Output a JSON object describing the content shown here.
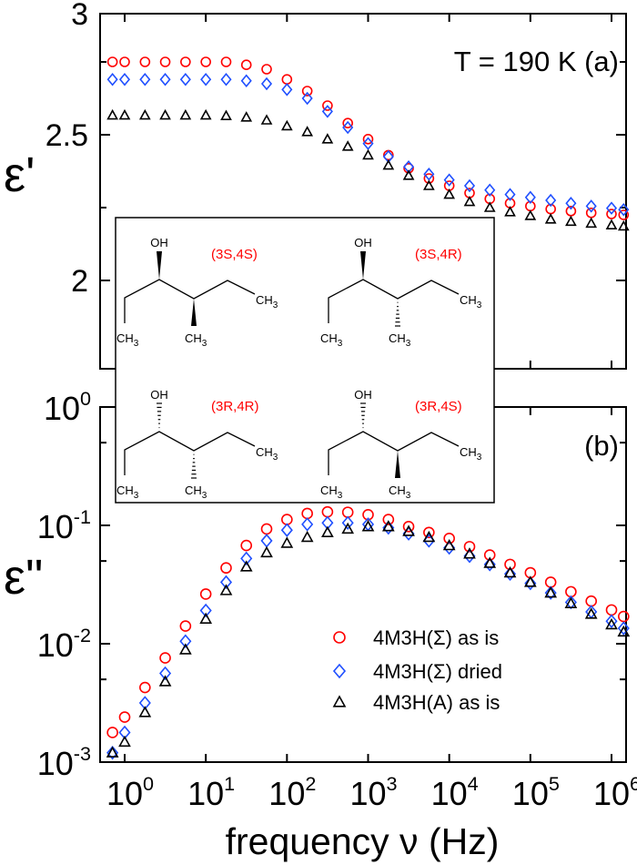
{
  "chart_data": [
    {
      "panel": "(a)",
      "type": "scatter",
      "annotation": "T = 190 K",
      "panel_label": "(a)",
      "ylabel": "ε'",
      "xscale": "log",
      "yscale": "linear",
      "ylim": [
        1.7,
        2.916
      ],
      "xlim": [
        0.5,
        1500000
      ],
      "yticks": [
        {
          "value": 2,
          "label": "2"
        },
        {
          "value": 2.5,
          "label": "2.5"
        },
        {
          "value": 3,
          "label": "3"
        }
      ],
      "x": [
        0.708,
        1,
        1.78,
        3.16,
        5.62,
        10,
        17.8,
        31.6,
        56.2,
        100,
        178,
        316,
        562,
        1000,
        1780,
        3160,
        5620,
        10000,
        17800,
        31600,
        56200,
        100000,
        178000,
        316000,
        562000,
        1000000,
        1410000
      ],
      "series": [
        {
          "name": "4M3H(Σ) as is",
          "marker": "circle",
          "color": "#ff0000",
          "values": [
            2.75,
            2.75,
            2.75,
            2.75,
            2.75,
            2.75,
            2.75,
            2.74,
            2.725,
            2.69,
            2.65,
            2.6,
            2.54,
            2.485,
            2.43,
            2.385,
            2.35,
            2.325,
            2.3,
            2.28,
            2.265,
            2.255,
            2.245,
            2.238,
            2.232,
            2.228,
            2.225
          ]
        },
        {
          "name": "4M3H(Σ) dried",
          "marker": "diamond",
          "color": "#1f4fff",
          "values": [
            2.69,
            2.69,
            2.69,
            2.69,
            2.69,
            2.69,
            2.69,
            2.685,
            2.675,
            2.655,
            2.625,
            2.58,
            2.525,
            2.47,
            2.425,
            2.39,
            2.365,
            2.345,
            2.325,
            2.31,
            2.295,
            2.285,
            2.275,
            2.265,
            2.255,
            2.248,
            2.243
          ]
        },
        {
          "name": "4M3H(A) as is",
          "marker": "triangle",
          "color": "#000000",
          "values": [
            2.567,
            2.567,
            2.567,
            2.567,
            2.567,
            2.567,
            2.565,
            2.56,
            2.55,
            2.53,
            2.51,
            2.485,
            2.46,
            2.43,
            2.395,
            2.36,
            2.325,
            2.295,
            2.27,
            2.25,
            2.235,
            2.222,
            2.21,
            2.202,
            2.196,
            2.19,
            2.186
          ]
        }
      ]
    },
    {
      "panel": "(b)",
      "type": "scatter",
      "panel_label": "(b)",
      "ylabel": "ε\"",
      "xlabel": "frequency ν (Hz)",
      "xscale": "log",
      "yscale": "log",
      "ylim": [
        0.001,
        1
      ],
      "xlim": [
        0.5,
        1500000
      ],
      "yticks": [
        {
          "value": 1,
          "base": "10",
          "exp": "0"
        },
        {
          "value": 0.1,
          "base": "10",
          "exp": "-1"
        },
        {
          "value": 0.01,
          "base": "10",
          "exp": "-2"
        },
        {
          "value": 0.001,
          "base": "10",
          "exp": "-3"
        }
      ],
      "xticks": [
        {
          "value": 1,
          "base": "10",
          "exp": "0"
        },
        {
          "value": 10,
          "base": "10",
          "exp": "1"
        },
        {
          "value": 100,
          "base": "10",
          "exp": "2"
        },
        {
          "value": 1000,
          "base": "10",
          "exp": "3"
        },
        {
          "value": 10000,
          "base": "10",
          "exp": "4"
        },
        {
          "value": 100000,
          "base": "10",
          "exp": "5"
        },
        {
          "value": 1000000,
          "base": "10",
          "exp": "6"
        }
      ],
      "x": [
        0.708,
        1,
        1.78,
        3.16,
        5.62,
        10,
        17.8,
        31.6,
        56.2,
        100,
        178,
        316,
        562,
        1000,
        1780,
        3160,
        5620,
        10000,
        17800,
        31600,
        56200,
        100000,
        178000,
        316000,
        562000,
        1000000,
        1410000
      ],
      "series": [
        {
          "name": "4M3H(Σ) as is",
          "marker": "circle",
          "color": "#ff0000",
          "values": [
            0.00178,
            0.0024,
            0.00427,
            0.00759,
            0.0141,
            0.0263,
            0.0437,
            0.0676,
            0.0933,
            0.112,
            0.126,
            0.13,
            0.129,
            0.123,
            0.112,
            0.0977,
            0.0871,
            0.0776,
            0.0661,
            0.0562,
            0.0468,
            0.0398,
            0.0331,
            0.0275,
            0.0229,
            0.0193,
            0.017
          ]
        },
        {
          "name": "4M3H(Σ) dried",
          "marker": "diamond",
          "color": "#1f4fff",
          "values": [
            0.0012,
            0.00178,
            0.00316,
            0.00562,
            0.0105,
            0.0191,
            0.0331,
            0.0525,
            0.0741,
            0.0912,
            0.102,
            0.105,
            0.105,
            0.102,
            0.0955,
            0.0851,
            0.0741,
            0.0646,
            0.055,
            0.0468,
            0.0389,
            0.0324,
            0.0269,
            0.0224,
            0.0186,
            0.0155,
            0.0135
          ]
        },
        {
          "name": "4M3H(A) as is",
          "marker": "triangle",
          "color": "#000000",
          "values": [
            0.0012,
            0.00148,
            0.00263,
            0.00479,
            0.00891,
            0.0162,
            0.0282,
            0.0447,
            0.0589,
            0.0708,
            0.0794,
            0.0871,
            0.0933,
            0.0977,
            0.0977,
            0.0891,
            0.0794,
            0.0676,
            0.0575,
            0.0479,
            0.0398,
            0.0331,
            0.0269,
            0.0219,
            0.0178,
            0.0145,
            0.0126
          ]
        }
      ],
      "legend": {
        "placement": "lower-right",
        "entries": [
          "4M3H(Σ) as is",
          "4M3H(Σ) dried",
          "4M3H(A) as is"
        ]
      }
    }
  ],
  "inset": {
    "label_color": "#ff0000",
    "oh_label": "OH",
    "ch3_label": "CH",
    "ch3_sub": "3",
    "molecules": [
      {
        "label": "(3S,4S)",
        "oh_bond": "wedge",
        "methyl_bond": "wedge"
      },
      {
        "label": "(3S,4R)",
        "oh_bond": "wedge",
        "methyl_bond": "hash"
      },
      {
        "label": "(3R,4R)",
        "oh_bond": "hash",
        "methyl_bond": "hash"
      },
      {
        "label": "(3R,4S)",
        "oh_bond": "hash",
        "methyl_bond": "wedge"
      }
    ]
  }
}
